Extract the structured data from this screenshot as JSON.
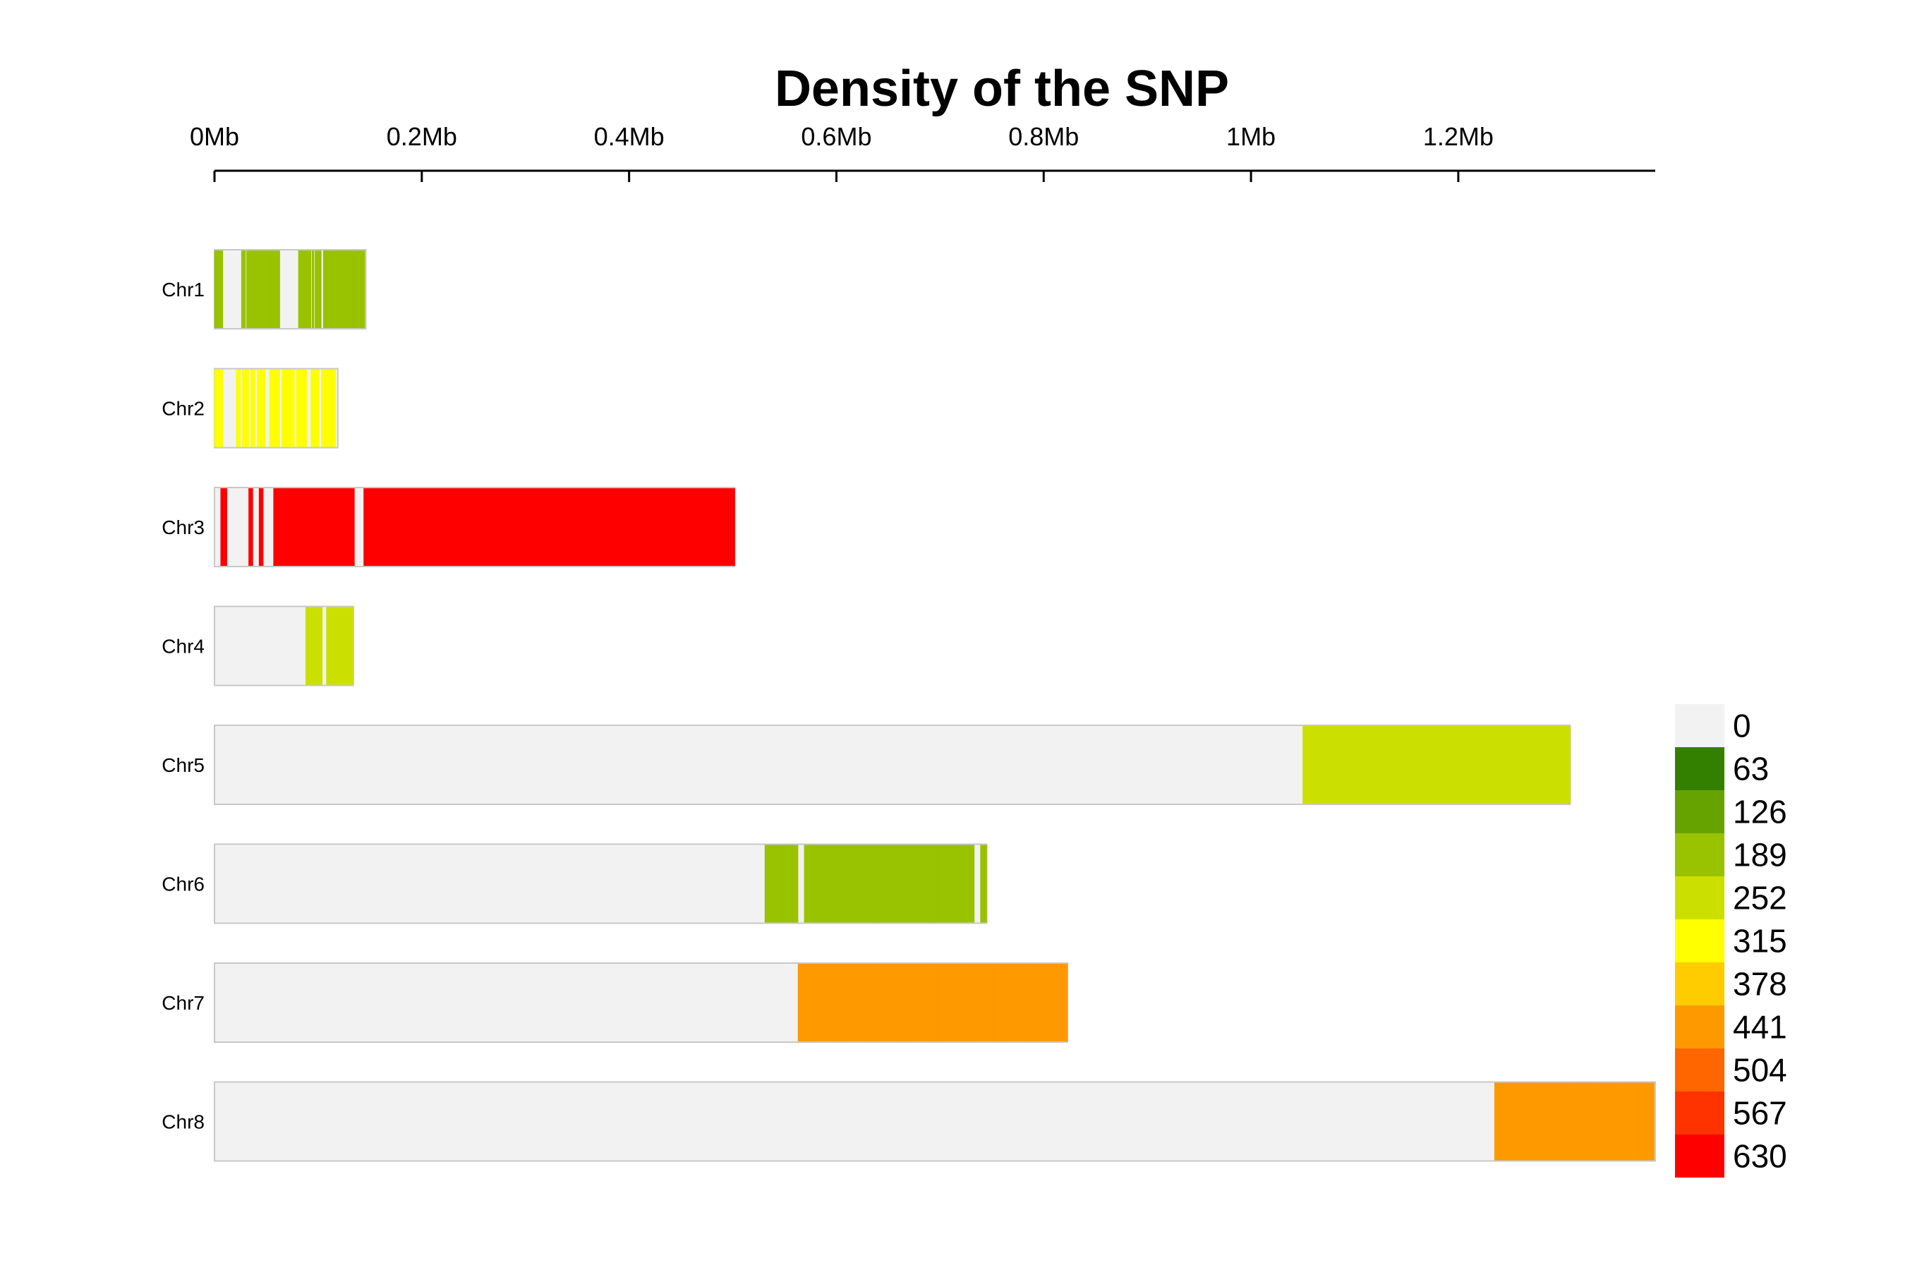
{
  "chart_data": {
    "type": "heatmap",
    "title": "Density of the SNP",
    "xlabel": "",
    "ylabel": "",
    "x_axis_position": "top",
    "x_unit": "Mb",
    "xlim": [
      0,
      1.39
    ],
    "x_ticks": [
      0,
      0.2,
      0.4,
      0.6,
      0.8,
      1.0,
      1.2
    ],
    "x_tick_labels": [
      "0Mb",
      "0.2Mb",
      "0.4Mb",
      "0.6Mb",
      "0.8Mb",
      "1Mb",
      "1.2Mb"
    ],
    "background_color": "#f2f2f2",
    "legend": {
      "placement": "right",
      "values": [
        0,
        63,
        126,
        189,
        252,
        315,
        378,
        441,
        504,
        567,
        630
      ],
      "labels": [
        "0",
        "63",
        "126",
        "189",
        "252",
        "315",
        "378",
        "441",
        "504",
        "567",
        "630"
      ],
      "colors": [
        "#f2f2f2",
        "#338000",
        "#66a300",
        "#99c200",
        "#cce000",
        "#ffff00",
        "#ffcc00",
        "#ff9900",
        "#ff6600",
        "#ff3300",
        "#ff0000"
      ]
    },
    "chromosomes": [
      {
        "name": "Chr1",
        "length": 0.146,
        "density_color": "#99c200",
        "snp_positions": [
          0.001,
          0.003,
          0.005,
          0.007,
          0.027,
          0.029,
          0.032,
          0.034,
          0.036,
          0.038,
          0.04,
          0.042,
          0.044,
          0.046,
          0.048,
          0.05,
          0.052,
          0.054,
          0.056,
          0.058,
          0.06,
          0.062,
          0.082,
          0.084,
          0.086,
          0.088,
          0.09,
          0.092,
          0.095,
          0.098,
          0.1,
          0.102,
          0.106,
          0.108,
          0.11,
          0.112,
          0.114,
          0.116,
          0.118,
          0.12,
          0.122,
          0.124,
          0.126,
          0.128,
          0.13,
          0.132,
          0.134,
          0.136,
          0.138,
          0.14,
          0.142,
          0.144
        ]
      },
      {
        "name": "Chr2",
        "length": 0.119,
        "density_color": "#ffff00",
        "snp_positions": [
          0.001,
          0.003,
          0.005,
          0.007,
          0.022,
          0.024,
          0.028,
          0.03,
          0.032,
          0.036,
          0.038,
          0.042,
          0.044,
          0.046,
          0.048,
          0.054,
          0.056,
          0.058,
          0.06,
          0.062,
          0.066,
          0.068,
          0.07,
          0.072,
          0.074,
          0.076,
          0.08,
          0.082,
          0.084,
          0.086,
          0.088,
          0.094,
          0.096,
          0.098,
          0.1,
          0.104,
          0.106,
          0.108,
          0.11,
          0.112,
          0.114,
          0.116
        ]
      },
      {
        "name": "Chr3",
        "length": 0.502,
        "density_color": "#ff0000",
        "snp_positions": [
          0.007,
          0.009,
          0.011,
          0.034,
          0.036,
          0.044,
          0.046,
          0.058,
          0.06,
          0.062,
          0.064,
          0.066,
          0.068,
          0.07,
          0.072,
          0.074,
          0.076,
          0.078,
          0.08,
          0.082,
          0.084,
          0.086,
          0.088,
          0.09,
          0.092,
          0.094,
          0.096,
          0.098,
          0.1,
          0.102,
          0.104,
          0.106,
          0.108,
          0.11,
          0.112,
          0.114,
          0.116,
          0.118,
          0.12,
          0.122,
          0.124,
          0.126,
          0.128,
          0.13,
          0.132,
          0.134,
          0.145,
          0.147,
          0.149,
          0.151,
          0.153,
          0.155,
          0.157,
          0.159,
          0.161,
          0.163,
          0.165,
          0.167,
          0.169,
          0.171,
          0.173,
          0.175,
          0.177,
          0.179,
          0.181,
          0.183,
          0.185,
          0.187,
          0.189,
          0.191,
          0.193,
          0.195,
          0.197,
          0.199,
          0.201,
          0.203,
          0.205,
          0.207,
          0.209,
          0.211,
          0.213,
          0.215,
          0.217,
          0.219,
          0.221,
          0.223,
          0.225,
          0.227,
          0.229,
          0.231,
          0.233,
          0.235,
          0.237,
          0.239,
          0.241,
          0.243,
          0.245,
          0.247,
          0.249,
          0.251,
          0.253,
          0.255,
          0.257,
          0.259,
          0.261,
          0.263,
          0.265,
          0.267,
          0.269,
          0.271,
          0.273,
          0.275,
          0.277,
          0.279,
          0.281,
          0.283,
          0.285,
          0.287,
          0.289,
          0.291,
          0.293,
          0.295,
          0.297,
          0.299,
          0.301,
          0.303,
          0.305,
          0.307,
          0.309,
          0.311,
          0.313,
          0.315,
          0.317,
          0.319,
          0.321,
          0.323,
          0.325,
          0.327,
          0.329,
          0.331,
          0.333,
          0.335,
          0.337,
          0.339,
          0.341,
          0.343,
          0.345,
          0.347,
          0.349,
          0.351,
          0.353,
          0.355,
          0.357,
          0.359,
          0.361,
          0.363,
          0.365,
          0.367,
          0.369,
          0.371,
          0.373,
          0.375,
          0.377,
          0.379,
          0.381,
          0.383,
          0.385,
          0.387,
          0.389,
          0.391,
          0.393,
          0.395,
          0.397,
          0.399,
          0.401,
          0.403,
          0.405,
          0.407,
          0.409,
          0.411,
          0.413,
          0.415,
          0.417,
          0.419,
          0.421,
          0.423,
          0.425,
          0.427,
          0.429,
          0.431,
          0.433,
          0.435,
          0.437,
          0.439,
          0.441,
          0.443,
          0.445,
          0.447,
          0.449,
          0.451,
          0.453,
          0.455,
          0.457,
          0.459,
          0.461,
          0.463,
          0.465,
          0.467,
          0.469,
          0.471,
          0.473,
          0.475,
          0.477,
          0.479,
          0.481,
          0.483,
          0.485,
          0.487,
          0.489,
          0.491,
          0.493,
          0.495,
          0.497,
          0.499,
          0.501
        ]
      },
      {
        "name": "Chr4",
        "length": 0.134,
        "density_color": "#cce000",
        "snp_positions": [
          0.089,
          0.091,
          0.093,
          0.095,
          0.097,
          0.099,
          0.101,
          0.103,
          0.109,
          0.111,
          0.113,
          0.115,
          0.117,
          0.119,
          0.121,
          0.123,
          0.125,
          0.127,
          0.129,
          0.131,
          0.133
        ]
      },
      {
        "name": "Chr5",
        "length": 1.308,
        "density_color": "#cce000",
        "snp_positions": [
          1.051,
          1.053,
          1.055,
          1.057,
          1.059,
          1.061,
          1.063,
          1.065,
          1.067,
          1.069,
          1.071,
          1.073,
          1.075,
          1.077,
          1.079,
          1.081,
          1.083,
          1.085,
          1.087,
          1.089,
          1.091,
          1.093,
          1.095,
          1.097,
          1.099,
          1.101,
          1.103,
          1.105,
          1.107,
          1.109,
          1.111,
          1.113,
          1.115,
          1.117,
          1.119,
          1.121,
          1.123,
          1.125,
          1.127,
          1.129,
          1.131,
          1.133,
          1.135,
          1.137,
          1.139,
          1.141,
          1.143,
          1.145,
          1.147,
          1.149,
          1.151,
          1.153,
          1.155,
          1.157,
          1.159,
          1.161,
          1.163,
          1.165,
          1.167,
          1.169,
          1.171,
          1.173,
          1.175,
          1.177,
          1.179,
          1.181,
          1.183,
          1.185,
          1.187,
          1.189,
          1.191,
          1.193,
          1.195,
          1.197,
          1.199,
          1.201,
          1.203,
          1.205,
          1.207,
          1.209,
          1.211,
          1.213,
          1.215,
          1.217,
          1.219,
          1.221,
          1.223,
          1.225,
          1.227,
          1.229,
          1.231,
          1.233,
          1.235,
          1.237,
          1.239,
          1.241,
          1.243,
          1.245,
          1.247,
          1.249,
          1.251,
          1.253,
          1.255,
          1.257,
          1.259,
          1.261,
          1.263,
          1.265,
          1.267,
          1.269,
          1.271,
          1.273,
          1.275,
          1.277,
          1.279,
          1.281,
          1.283,
          1.285,
          1.287,
          1.289,
          1.291,
          1.293,
          1.295,
          1.297,
          1.299,
          1.301,
          1.303,
          1.305,
          1.307
        ]
      },
      {
        "name": "Chr6",
        "length": 0.745,
        "density_color": "#99c200",
        "snp_positions": [
          0.532,
          0.534,
          0.536,
          0.538,
          0.54,
          0.542,
          0.544,
          0.546,
          0.548,
          0.55,
          0.552,
          0.554,
          0.556,
          0.558,
          0.56,
          0.562,
          0.57,
          0.572,
          0.574,
          0.576,
          0.578,
          0.58,
          0.582,
          0.584,
          0.586,
          0.588,
          0.59,
          0.592,
          0.594,
          0.596,
          0.598,
          0.6,
          0.602,
          0.604,
          0.606,
          0.608,
          0.61,
          0.612,
          0.614,
          0.616,
          0.618,
          0.62,
          0.622,
          0.624,
          0.626,
          0.628,
          0.63,
          0.632,
          0.634,
          0.636,
          0.638,
          0.64,
          0.642,
          0.644,
          0.646,
          0.648,
          0.65,
          0.652,
          0.654,
          0.656,
          0.658,
          0.66,
          0.662,
          0.664,
          0.666,
          0.668,
          0.67,
          0.672,
          0.674,
          0.676,
          0.678,
          0.68,
          0.682,
          0.684,
          0.686,
          0.688,
          0.69,
          0.692,
          0.694,
          0.696,
          0.698,
          0.7,
          0.702,
          0.704,
          0.706,
          0.708,
          0.71,
          0.712,
          0.714,
          0.716,
          0.718,
          0.72,
          0.722,
          0.724,
          0.726,
          0.728,
          0.73,
          0.732,
          0.74,
          0.742,
          0.744
        ]
      },
      {
        "name": "Chr7",
        "length": 0.823,
        "density_color": "#ff9900",
        "snp_positions": [
          0.564,
          0.566,
          0.568,
          0.57,
          0.572,
          0.574,
          0.576,
          0.578,
          0.58,
          0.582,
          0.584,
          0.586,
          0.588,
          0.59,
          0.592,
          0.594,
          0.596,
          0.598,
          0.6,
          0.602,
          0.604,
          0.606,
          0.608,
          0.61,
          0.612,
          0.614,
          0.616,
          0.618,
          0.62,
          0.622,
          0.624,
          0.626,
          0.628,
          0.63,
          0.632,
          0.634,
          0.636,
          0.638,
          0.64,
          0.642,
          0.644,
          0.646,
          0.648,
          0.65,
          0.652,
          0.654,
          0.656,
          0.658,
          0.66,
          0.662,
          0.664,
          0.666,
          0.668,
          0.67,
          0.672,
          0.674,
          0.676,
          0.678,
          0.68,
          0.682,
          0.684,
          0.686,
          0.688,
          0.69,
          0.692,
          0.694,
          0.696,
          0.698,
          0.7,
          0.702,
          0.704,
          0.706,
          0.708,
          0.71,
          0.712,
          0.714,
          0.716,
          0.718,
          0.72,
          0.722,
          0.724,
          0.726,
          0.728,
          0.73,
          0.732,
          0.734,
          0.736,
          0.738,
          0.74,
          0.742,
          0.744,
          0.746,
          0.748,
          0.75,
          0.752,
          0.754,
          0.756,
          0.758,
          0.76,
          0.762,
          0.764,
          0.766,
          0.768,
          0.77,
          0.772,
          0.774,
          0.776,
          0.778,
          0.78,
          0.782,
          0.784,
          0.786,
          0.788,
          0.79,
          0.792,
          0.794,
          0.796,
          0.798,
          0.8,
          0.802,
          0.804,
          0.806,
          0.808,
          0.81,
          0.812,
          0.814,
          0.816,
          0.818,
          0.82,
          0.822
        ]
      },
      {
        "name": "Chr8",
        "length": 1.39,
        "density_color": "#ff9900",
        "snp_positions": [
          1.236,
          1.238,
          1.24,
          1.242,
          1.244,
          1.246,
          1.248,
          1.25,
          1.252,
          1.254,
          1.256,
          1.258,
          1.26,
          1.262,
          1.264,
          1.266,
          1.268,
          1.27,
          1.272,
          1.274,
          1.276,
          1.278,
          1.28,
          1.282,
          1.284,
          1.286,
          1.288,
          1.29,
          1.292,
          1.294,
          1.296,
          1.298,
          1.3,
          1.302,
          1.304,
          1.306,
          1.308,
          1.31,
          1.312,
          1.314,
          1.316,
          1.318,
          1.32,
          1.322,
          1.324,
          1.326,
          1.328,
          1.33,
          1.332,
          1.334,
          1.336,
          1.338,
          1.34,
          1.342,
          1.344,
          1.346,
          1.348,
          1.35,
          1.352,
          1.354,
          1.356,
          1.358,
          1.36,
          1.362,
          1.364,
          1.366,
          1.368,
          1.37,
          1.372,
          1.374,
          1.376,
          1.378,
          1.38,
          1.382,
          1.384,
          1.386,
          1.388
        ]
      }
    ]
  }
}
